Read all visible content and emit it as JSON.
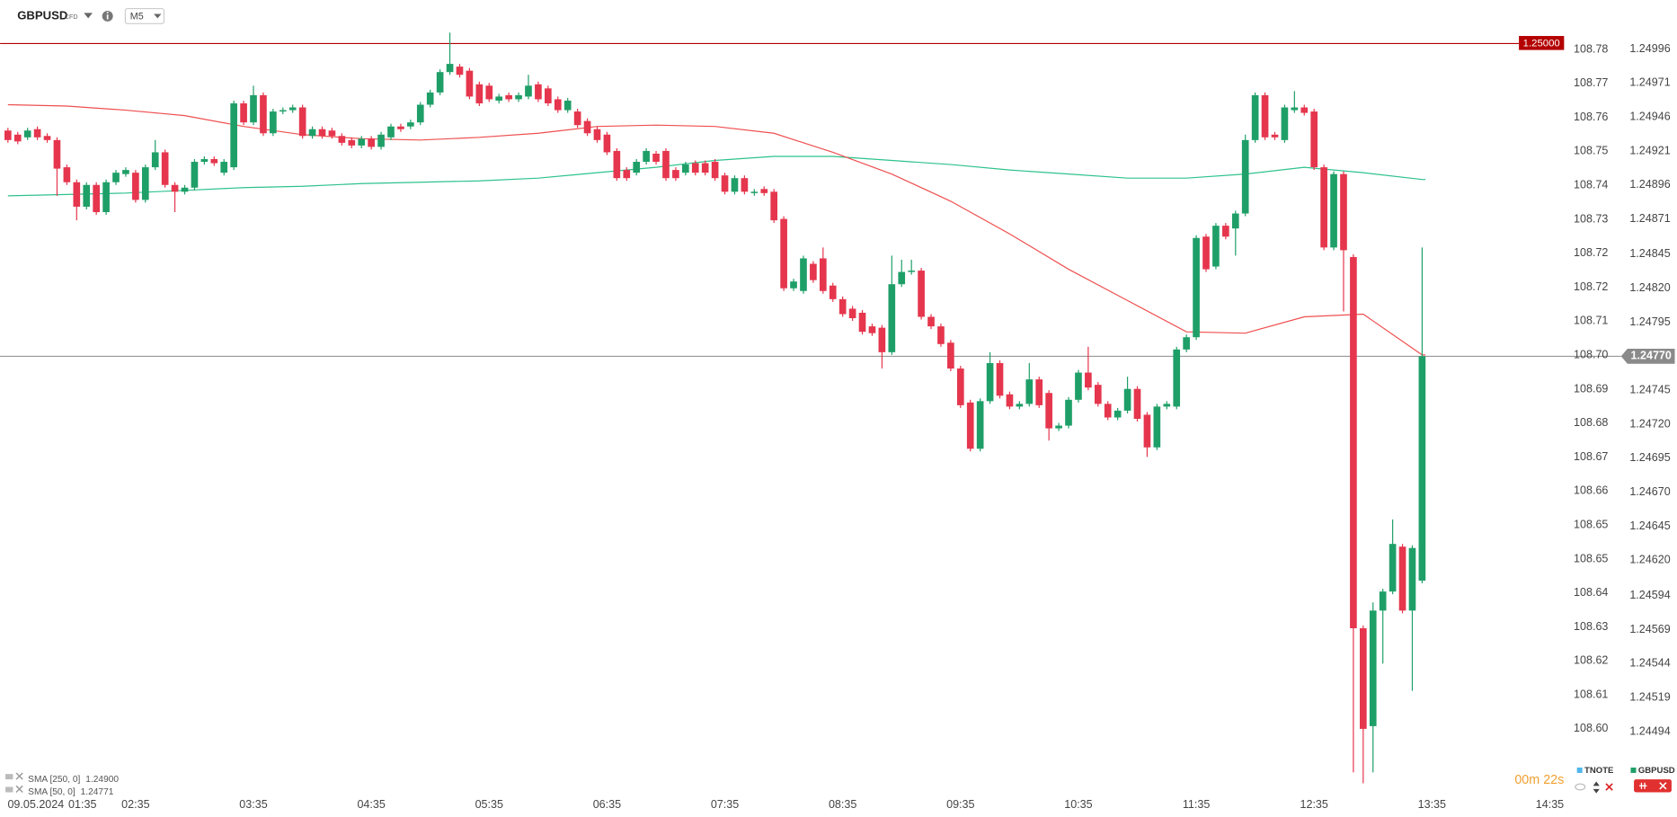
{
  "header": {
    "symbol": "GBPUSD",
    "instrument_type": "CFD",
    "timeframe": "M5"
  },
  "chart_data": {
    "type": "candlestick",
    "date": "09.05.2024",
    "x": [
      "01:30",
      "01:35",
      "01:40",
      "01:45",
      "01:50",
      "01:55",
      "02:00",
      "02:05",
      "02:10",
      "02:15",
      "02:20",
      "02:25",
      "02:30",
      "02:35",
      "02:40",
      "02:45",
      "02:50",
      "02:55",
      "03:00",
      "03:05",
      "03:10",
      "03:15",
      "03:20",
      "03:25",
      "03:30",
      "03:35",
      "03:40",
      "03:45",
      "03:50",
      "03:55",
      "04:00",
      "04:05",
      "04:10",
      "04:15",
      "04:20",
      "04:25",
      "04:30",
      "04:35",
      "04:40",
      "04:45",
      "04:50",
      "04:55",
      "05:00",
      "05:05",
      "05:10",
      "05:15",
      "05:20",
      "05:25",
      "05:30",
      "05:35",
      "05:40",
      "05:45",
      "05:50",
      "05:55",
      "06:00",
      "06:05",
      "06:10",
      "06:15",
      "06:20",
      "06:25",
      "06:30",
      "06:35",
      "06:40",
      "06:45",
      "06:50",
      "06:55",
      "07:00",
      "07:05",
      "07:10",
      "07:15",
      "07:20",
      "07:25",
      "07:30",
      "07:35",
      "07:40",
      "07:45",
      "07:50",
      "07:55",
      "08:00",
      "08:05",
      "08:10",
      "08:15",
      "08:20",
      "08:25",
      "08:30",
      "08:35",
      "08:40",
      "08:45",
      "08:50",
      "08:55",
      "09:00",
      "09:05",
      "09:10",
      "09:15",
      "09:20",
      "09:25",
      "09:30",
      "09:35",
      "09:40",
      "09:45",
      "09:50",
      "09:55",
      "10:00",
      "10:05",
      "10:10",
      "10:15",
      "10:20",
      "10:25",
      "10:30",
      "10:35",
      "10:40",
      "10:45",
      "10:50",
      "10:55",
      "11:00",
      "11:05",
      "11:10",
      "11:15",
      "11:20",
      "11:25",
      "11:30",
      "11:35",
      "11:40",
      "11:45",
      "11:50",
      "11:55",
      "12:00",
      "12:05",
      "12:10",
      "12:15",
      "12:20",
      "12:25",
      "12:30",
      "12:35",
      "12:40",
      "12:45",
      "12:50",
      "12:55",
      "13:00",
      "13:05",
      "13:10",
      "13:15",
      "13:20",
      "13:25",
      "13:30"
    ],
    "open": [
      1.24936,
      1.24933,
      1.24931,
      1.24937,
      1.24932,
      1.24929,
      1.24909,
      1.24898,
      1.2488,
      1.24896,
      1.24876,
      1.24898,
      1.24904,
      1.24905,
      1.24885,
      1.24909,
      1.2492,
      1.24896,
      1.24891,
      1.24894,
      1.24913,
      1.24915,
      1.24905,
      1.24909,
      1.24956,
      1.24942,
      1.24962,
      1.24934,
      1.2495,
      1.24951,
      1.24953,
      1.24932,
      1.24937,
      1.24936,
      1.24932,
      1.24929,
      1.24925,
      1.2493,
      1.24924,
      1.24931,
      1.24939,
      1.24939,
      1.24942,
      1.24955,
      1.24964,
      1.24979,
      1.24983,
      1.2498,
      1.2497,
      1.24969,
      1.24958,
      1.24962,
      1.24959,
      1.24961,
      1.2497,
      1.24967,
      1.24959,
      1.24951,
      1.2495,
      1.24943,
      1.24937,
      1.24933,
      1.24921,
      1.24907,
      1.24905,
      1.24913,
      1.24919,
      1.24921,
      1.24907,
      1.24905,
      1.24912,
      1.24912,
      1.24913,
      1.24903,
      1.24891,
      1.24901,
      1.2489,
      1.24893,
      1.24891,
      1.24871,
      1.2482,
      1.24818,
      1.24838,
      1.24842,
      1.24822,
      1.24812,
      1.24805,
      1.24802,
      1.24792,
      1.24791,
      1.24773,
      1.24823,
      1.24832,
      1.24833,
      1.24799,
      1.24792,
      1.2478,
      1.24761,
      1.24736,
      1.24702,
      1.24737,
      1.24765,
      1.24742,
      1.24733,
      1.24735,
      1.24753,
      1.24743,
      1.24717,
      1.24719,
      1.24738,
      1.24758,
      1.24749,
      1.24735,
      1.24725,
      1.2473,
      1.24746,
      1.24727,
      1.24703,
      1.24733,
      1.24733,
      1.24775,
      1.24784,
      1.24858,
      1.24836,
      1.24866,
      1.24864,
      1.24875,
      1.24929,
      1.24962,
      1.24933,
      1.24929,
      1.24951,
      1.24953,
      1.2495,
      1.24909,
      1.2485,
      1.24904,
      1.24843,
      1.2457,
      1.24498,
      1.24583,
      1.24597,
      1.2463,
      1.24583,
      1.24605
    ],
    "high": [
      1.24938,
      1.24935,
      1.24938,
      1.24939,
      1.24934,
      1.24931,
      1.24911,
      1.249,
      1.24898,
      1.24898,
      1.249,
      1.24907,
      1.24909,
      1.24907,
      1.24911,
      1.24929,
      1.24922,
      1.24898,
      1.24896,
      1.24915,
      1.24917,
      1.24917,
      1.24915,
      1.24958,
      1.24958,
      1.24969,
      1.24964,
      1.24952,
      1.24953,
      1.24955,
      1.24955,
      1.24939,
      1.24939,
      1.24938,
      1.24934,
      1.24931,
      1.24932,
      1.24932,
      1.24935,
      1.24941,
      1.24941,
      1.24944,
      1.24957,
      1.24966,
      1.24981,
      1.25008,
      1.24985,
      1.24982,
      1.24972,
      1.24971,
      1.24963,
      1.24964,
      1.24964,
      1.24977,
      1.24972,
      1.24969,
      1.24961,
      1.2496,
      1.24952,
      1.24945,
      1.24939,
      1.24935,
      1.24923,
      1.24909,
      1.24915,
      1.24923,
      1.24921,
      1.24923,
      1.24909,
      1.24913,
      1.24914,
      1.24914,
      1.24915,
      1.24905,
      1.24903,
      1.24903,
      1.24893,
      1.24895,
      1.24893,
      1.24873,
      1.24827,
      1.24844,
      1.2484,
      1.2485,
      1.24824,
      1.24814,
      1.24807,
      1.24804,
      1.24794,
      1.24793,
      1.24844,
      1.24841,
      1.24841,
      1.24835,
      1.24801,
      1.24794,
      1.24782,
      1.24763,
      1.24738,
      1.24739,
      1.24773,
      1.24767,
      1.24744,
      1.24737,
      1.24765,
      1.24755,
      1.24745,
      1.24721,
      1.2474,
      1.2476,
      1.24777,
      1.24751,
      1.24737,
      1.24732,
      1.24755,
      1.24748,
      1.24729,
      1.24735,
      1.24737,
      1.24777,
      1.24786,
      1.24859,
      1.2486,
      1.24868,
      1.24868,
      1.24877,
      1.24933,
      1.24964,
      1.24964,
      1.24935,
      1.24955,
      1.24965,
      1.24955,
      1.24952,
      1.24911,
      1.24906,
      1.24906,
      1.24845,
      1.24572,
      1.24589,
      1.24599,
      1.2465,
      1.24632,
      1.24631,
      1.2485
    ],
    "low": [
      1.24927,
      1.24926,
      1.24929,
      1.24929,
      1.24927,
      1.24888,
      1.24896,
      1.2487,
      1.24878,
      1.24874,
      1.24874,
      1.24896,
      1.24902,
      1.24883,
      1.24883,
      1.24907,
      1.24894,
      1.24876,
      1.24889,
      1.24892,
      1.24911,
      1.2491,
      1.24903,
      1.24907,
      1.2494,
      1.2494,
      1.24932,
      1.24932,
      1.24948,
      1.24949,
      1.2493,
      1.2493,
      1.2493,
      1.2493,
      1.24925,
      1.24923,
      1.24923,
      1.24922,
      1.24922,
      1.24929,
      1.24935,
      1.24937,
      1.2494,
      1.24953,
      1.24962,
      1.24977,
      1.24975,
      1.24959,
      1.24954,
      1.24957,
      1.24956,
      1.24957,
      1.24957,
      1.24959,
      1.24957,
      1.24954,
      1.24949,
      1.24949,
      1.24938,
      1.24932,
      1.24927,
      1.24918,
      1.24899,
      1.24899,
      1.24903,
      1.24911,
      1.24911,
      1.24899,
      1.24899,
      1.24903,
      1.24903,
      1.24903,
      1.24899,
      1.24889,
      1.24889,
      1.24889,
      1.24888,
      1.24888,
      1.24868,
      1.24818,
      1.24818,
      1.24816,
      1.24824,
      1.24816,
      1.2481,
      1.24799,
      1.24796,
      1.24786,
      1.24785,
      1.24761,
      1.24771,
      1.24821,
      1.2483,
      1.24797,
      1.2479,
      1.24777,
      1.24759,
      1.24732,
      1.247,
      1.247,
      1.24735,
      1.24739,
      1.24731,
      1.24731,
      1.24733,
      1.24732,
      1.24708,
      1.24715,
      1.24717,
      1.24736,
      1.24745,
      1.24733,
      1.24723,
      1.24723,
      1.24728,
      1.24722,
      1.24696,
      1.24701,
      1.24731,
      1.24731,
      1.24773,
      1.24782,
      1.24832,
      1.24834,
      1.24856,
      1.24844,
      1.24873,
      1.24927,
      1.24929,
      1.24929,
      1.24927,
      1.24949,
      1.24947,
      1.24907,
      1.24848,
      1.24848,
      1.24803,
      1.24464,
      1.24456,
      1.24464,
      1.24544,
      1.24595,
      1.24581,
      1.24524,
      1.24603
    ],
    "close": [
      1.24929,
      1.24928,
      1.24936,
      1.24931,
      1.24929,
      1.24908,
      1.24898,
      1.2488,
      1.24896,
      1.24876,
      1.24898,
      1.24905,
      1.24907,
      1.24885,
      1.24909,
      1.2492,
      1.24896,
      1.24891,
      1.24894,
      1.24913,
      1.24915,
      1.24912,
      1.24913,
      1.24956,
      1.24942,
      1.24962,
      1.24934,
      1.2495,
      1.24951,
      1.24953,
      1.24932,
      1.24937,
      1.24932,
      1.24932,
      1.24927,
      1.24925,
      1.2493,
      1.24924,
      1.24933,
      1.24939,
      1.24937,
      1.24942,
      1.24955,
      1.24964,
      1.24979,
      1.24985,
      1.24977,
      1.24961,
      1.24956,
      1.24959,
      1.24961,
      1.24959,
      1.24962,
      1.24969,
      1.24959,
      1.24956,
      1.24951,
      1.24958,
      1.2494,
      1.24934,
      1.24929,
      1.2492,
      1.24901,
      1.24901,
      1.24913,
      1.24921,
      1.24913,
      1.24901,
      1.24901,
      1.24911,
      1.24905,
      1.24905,
      1.24901,
      1.24891,
      1.24901,
      1.24891,
      1.24891,
      1.2489,
      1.2487,
      1.2482,
      1.24825,
      1.24842,
      1.24826,
      1.24818,
      1.24812,
      1.24801,
      1.24798,
      1.24788,
      1.24787,
      1.24773,
      1.24823,
      1.24832,
      1.24833,
      1.24799,
      1.24792,
      1.24779,
      1.24761,
      1.24734,
      1.24702,
      1.24737,
      1.24765,
      1.24741,
      1.24733,
      1.24735,
      1.24753,
      1.24734,
      1.24717,
      1.24719,
      1.24738,
      1.24758,
      1.24747,
      1.24735,
      1.24725,
      1.2473,
      1.24746,
      1.24724,
      1.24703,
      1.24733,
      1.24735,
      1.24775,
      1.24784,
      1.24857,
      1.24834,
      1.24866,
      1.24858,
      1.24875,
      1.24929,
      1.24962,
      1.24931,
      1.24931,
      1.24953,
      1.24953,
      1.24949,
      1.24909,
      1.2485,
      1.24904,
      1.24848,
      1.2457,
      1.24496,
      1.24583,
      1.24597,
      1.24632,
      1.24583,
      1.24629,
      1.2477
    ],
    "up_color": "#1f9f68",
    "down_color": "#e5364d",
    "xlim": [
      "01:26",
      "14:45"
    ],
    "xticks": [
      "01:35",
      "02:35",
      "03:35",
      "04:35",
      "05:35",
      "06:35",
      "07:35",
      "08:35",
      "09:35",
      "10:35",
      "11:35",
      "12:35",
      "13:35",
      "14:35"
    ],
    "ylim": [
      1.24447,
      1.25032
    ],
    "yticks": [
      1.24996,
      1.24971,
      1.24946,
      1.24921,
      1.24896,
      1.24871,
      1.24845,
      {
        "value": 1.2482,
        "label": "1.24820"
      },
      1.24795,
      1.24745,
      {
        "value": 1.2472,
        "label": "1.24720"
      },
      1.24695,
      {
        "value": 1.2467,
        "label": "1.24670"
      },
      1.24645,
      {
        "value": 1.2462,
        "label": "1.24620"
      },
      1.24594,
      1.24569,
      1.24544,
      1.24519,
      1.24494
    ],
    "y2lim": [
      108.58483,
      108.78974
    ],
    "y2ticks": [
      {
        "value": 108.777,
        "label": "108.78"
      },
      {
        "value": 108.76825,
        "label": "108.77"
      },
      {
        "value": 108.7595,
        "label": "108.76"
      },
      {
        "value": 108.75075,
        "label": "108.75"
      },
      {
        "value": 108.742,
        "label": "108.74"
      },
      {
        "value": 108.73325,
        "label": "108.73"
      },
      {
        "value": 108.7245,
        "label": "108.72"
      },
      {
        "value": 108.71575,
        "label": "108.72"
      },
      {
        "value": 108.707,
        "label": "108.71"
      },
      {
        "value": 108.69825,
        "label": "108.70"
      },
      {
        "value": 108.6895,
        "label": "108.69"
      },
      {
        "value": 108.68075,
        "label": "108.68"
      },
      {
        "value": 108.672,
        "label": "108.67"
      },
      {
        "value": 108.66325,
        "label": "108.66"
      },
      {
        "value": 108.6545,
        "label": "108.65"
      },
      {
        "value": 108.64575,
        "label": "108.65"
      },
      {
        "value": 108.637,
        "label": "108.64"
      },
      {
        "value": 108.62825,
        "label": "108.63"
      },
      {
        "value": 108.6195,
        "label": "108.62"
      },
      {
        "value": 108.61075,
        "label": "108.61"
      },
      {
        "value": 108.602,
        "label": "108.60"
      }
    ],
    "series": [
      {
        "name": "SMA [250, 0]",
        "type": "line",
        "color": "#2ec28c",
        "x": [
          "01:30",
          "02:00",
          "02:30",
          "03:00",
          "03:30",
          "04:00",
          "04:30",
          "05:00",
          "05:30",
          "06:00",
          "06:30",
          "07:00",
          "07:30",
          "08:00",
          "08:30",
          "09:00",
          "09:30",
          "10:00",
          "10:30",
          "11:00",
          "11:30",
          "12:00",
          "12:30",
          "13:00",
          "13:30"
        ],
        "values": [
          1.24888,
          1.24889,
          1.2489,
          1.24892,
          1.24894,
          1.24895,
          1.24897,
          1.24898,
          1.24899,
          1.24901,
          1.24905,
          1.24909,
          1.24914,
          1.24917,
          1.24917,
          1.24914,
          1.24911,
          1.24907,
          1.24904,
          1.24901,
          1.24901,
          1.24904,
          1.24909,
          1.24905,
          1.249
        ],
        "current": {
          "value": 1.249,
          "label": "1.24900"
        }
      },
      {
        "name": "SMA [50, 0]",
        "type": "line",
        "color": "#ef4f4f",
        "x": [
          "01:30",
          "02:00",
          "02:30",
          "03:00",
          "03:30",
          "04:00",
          "04:30",
          "05:00",
          "05:30",
          "06:00",
          "06:30",
          "07:00",
          "07:30",
          "08:00",
          "08:30",
          "09:00",
          "09:30",
          "10:00",
          "10:30",
          "11:00",
          "11:30",
          "12:00",
          "12:30",
          "13:00",
          "13:30"
        ],
        "values": [
          1.24955,
          1.24954,
          1.24951,
          1.24947,
          1.24939,
          1.24933,
          1.2493,
          1.24929,
          1.24931,
          1.24934,
          1.24939,
          1.2494,
          1.24939,
          1.24934,
          1.2492,
          1.24904,
          1.24884,
          1.2486,
          1.24834,
          1.24811,
          1.24788,
          1.24787,
          1.24799,
          1.24801,
          1.24771
        ],
        "current": {
          "value": 1.24771,
          "label": "1.24771"
        }
      }
    ],
    "price_lines": [
      {
        "value": 1.25,
        "label": "1.25000",
        "color": "#b40000"
      },
      {
        "value": 1.2477,
        "label": "1.24770",
        "color": "#8a8a8a"
      }
    ],
    "axis_legend": [
      {
        "name": "TNOTE",
        "color": "#4fb6ec"
      },
      {
        "name": "GBPUSD",
        "color": "#1f9f68"
      }
    ],
    "countdown": "00m 22s"
  }
}
